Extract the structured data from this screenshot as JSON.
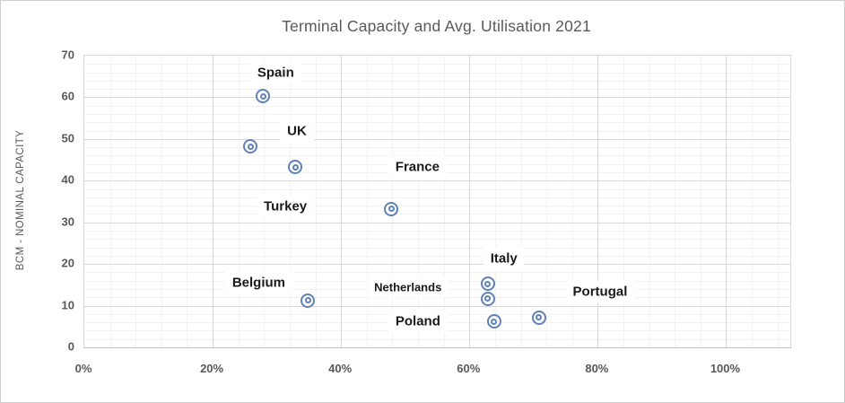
{
  "chart": {
    "title": "Terminal Capacity and Avg. Utilisation 2021",
    "y_axis_title": "BCM - NOMINAL CAPACITY"
  },
  "chart_data": {
    "type": "scatter",
    "title": "Terminal Capacity and Avg. Utilisation 2021",
    "xlabel": "",
    "ylabel": "BCM - NOMINAL CAPACITY",
    "x_unit": "percent_utilisation",
    "y_unit": "bcm_nominal_capacity",
    "xlim": [
      0,
      110
    ],
    "ylim": [
      0,
      70
    ],
    "x_major_ticks": [
      0,
      20,
      40,
      60,
      80,
      100
    ],
    "x_tick_labels": [
      "0%",
      "20%",
      "40%",
      "60%",
      "80%",
      "100%"
    ],
    "y_major_ticks": [
      70,
      60,
      50,
      40,
      30,
      20,
      10,
      0
    ],
    "x_minor_step": 4,
    "y_minor_step": 2,
    "grid": true,
    "legend_position": "none",
    "points": [
      {
        "name": "Spain",
        "utilisation_pct": 28,
        "capacity_bcm": 60,
        "label_offset": [
          14,
          -26
        ],
        "label_small": false
      },
      {
        "name": "UK",
        "utilisation_pct": 26,
        "capacity_bcm": 48,
        "label_offset": [
          52,
          -17
        ],
        "label_small": false
      },
      {
        "name": "Turkey",
        "utilisation_pct": 33,
        "capacity_bcm": 43,
        "label_offset": [
          -11,
          44
        ],
        "label_small": false
      },
      {
        "name": "France",
        "utilisation_pct": 48,
        "capacity_bcm": 33,
        "label_offset": [
          29,
          -47
        ],
        "label_small": false
      },
      {
        "name": "Belgium",
        "utilisation_pct": 35,
        "capacity_bcm": 11,
        "label_offset": [
          -55,
          -20
        ],
        "label_small": false
      },
      {
        "name": "Netherlands",
        "utilisation_pct": 63,
        "capacity_bcm": 11.5,
        "label_offset": [
          -89,
          -13
        ],
        "label_small": true
      },
      {
        "name": "Italy",
        "utilisation_pct": 63,
        "capacity_bcm": 15,
        "label_offset": [
          18,
          -28
        ],
        "label_small": false
      },
      {
        "name": "Poland",
        "utilisation_pct": 64,
        "capacity_bcm": 6,
        "label_offset": [
          -85,
          0
        ],
        "label_small": false
      },
      {
        "name": "Portugal",
        "utilisation_pct": 71,
        "capacity_bcm": 7,
        "label_offset": [
          68,
          -29
        ],
        "label_small": false
      }
    ],
    "colors": {
      "marker": "#5e81b8",
      "grid_major": "#d9d9d9",
      "grid_minor": "#f2f2f2",
      "axis_line": "#bfbfbf",
      "title_text": "#595959",
      "tick_text": "#595959",
      "point_label_text": "#1a1a1a",
      "background": "#ffffff"
    }
  }
}
